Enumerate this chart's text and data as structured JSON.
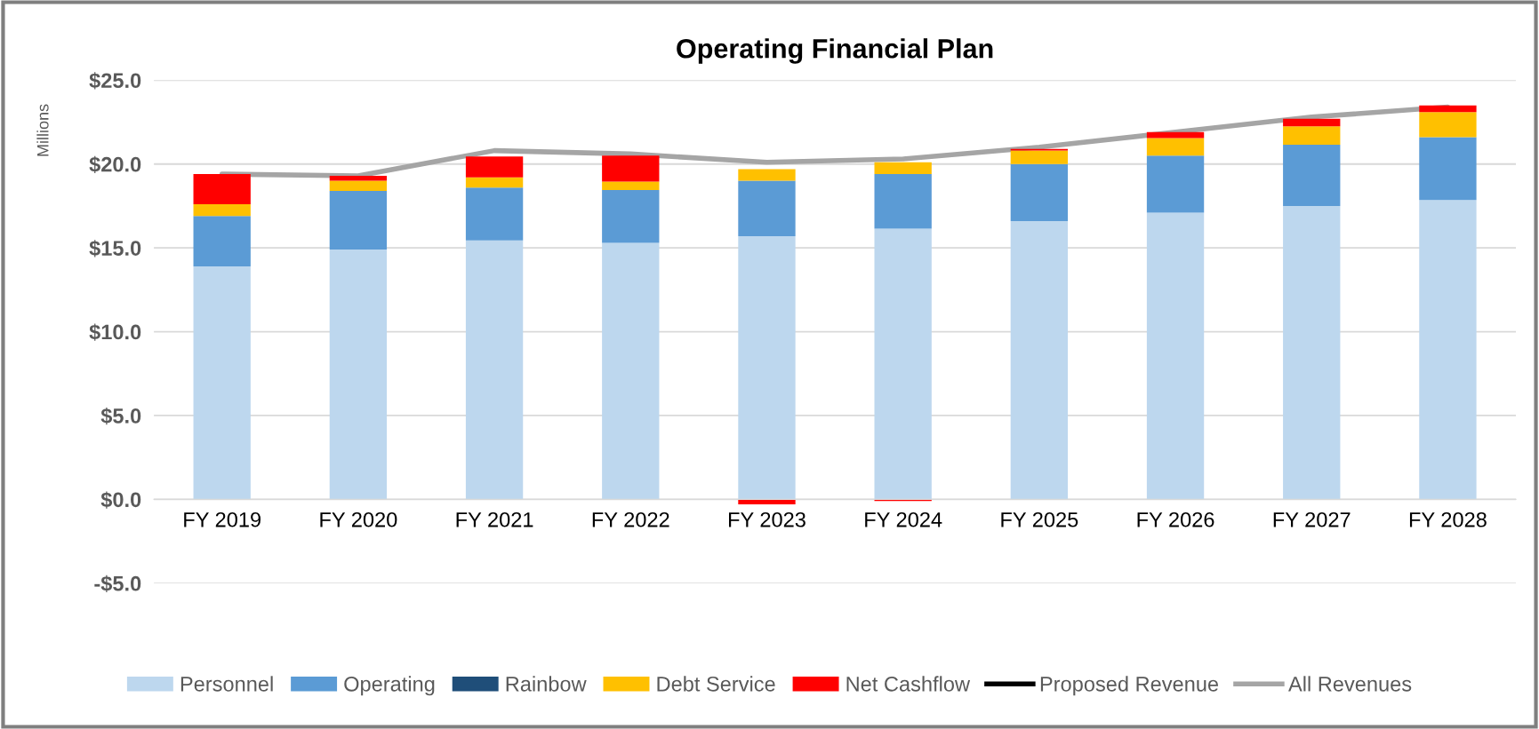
{
  "chart_data": {
    "type": "bar",
    "title": "Operating Financial Plan",
    "ylabel": "Millions",
    "stacked": true,
    "categories": [
      "FY 2019",
      "FY 2020",
      "FY 2021",
      "FY 2022",
      "FY 2023",
      "FY 2024",
      "FY 2025",
      "FY 2026",
      "FY 2027",
      "FY 2028"
    ],
    "series": [
      {
        "name": "Personnel",
        "color": "#bdd7ee",
        "values": [
          13.9,
          14.9,
          15.45,
          15.3,
          15.7,
          16.15,
          16.6,
          17.1,
          17.5,
          17.85
        ]
      },
      {
        "name": "Operating",
        "color": "#5b9bd5",
        "values": [
          3.0,
          3.5,
          3.15,
          3.15,
          3.3,
          3.25,
          3.4,
          3.4,
          3.65,
          3.75
        ]
      },
      {
        "name": "Rainbow",
        "color": "#1f4e79",
        "values": [
          0,
          0,
          0,
          0,
          0,
          0,
          0,
          0,
          0,
          0
        ]
      },
      {
        "name": "Debt Service",
        "color": "#ffc000",
        "values": [
          0.7,
          0.6,
          0.6,
          0.5,
          0.7,
          0.7,
          0.8,
          1.05,
          1.1,
          1.5
        ]
      },
      {
        "name": "Net Cashflow",
        "color": "#ff0000",
        "values": [
          1.8,
          0.3,
          1.25,
          1.55,
          -0.3,
          -0.1,
          0.1,
          0.35,
          0.45,
          0.4
        ]
      },
      {
        "name": "Proposed Revenue",
        "type": "line",
        "color": "#000000",
        "values": [
          null,
          null,
          null,
          null,
          null,
          null,
          null,
          null,
          null,
          null
        ]
      },
      {
        "name": "All Revenues",
        "type": "line",
        "color": "#a5a5a5",
        "values": [
          19.4,
          19.3,
          20.8,
          20.6,
          20.1,
          20.3,
          21.0,
          21.9,
          22.8,
          23.4
        ]
      }
    ],
    "ylim": [
      -5,
      25
    ],
    "yticks": [
      {
        "value": -5,
        "label": "-$5.0"
      },
      {
        "value": 0,
        "label": "$0.0"
      },
      {
        "value": 5,
        "label": "$5.0"
      },
      {
        "value": 10,
        "label": "$10.0"
      },
      {
        "value": 15,
        "label": "$15.0"
      },
      {
        "value": 20,
        "label": "$20.0"
      },
      {
        "value": 25,
        "label": "$25.0"
      }
    ],
    "grid": "y",
    "legend": "bottom"
  }
}
